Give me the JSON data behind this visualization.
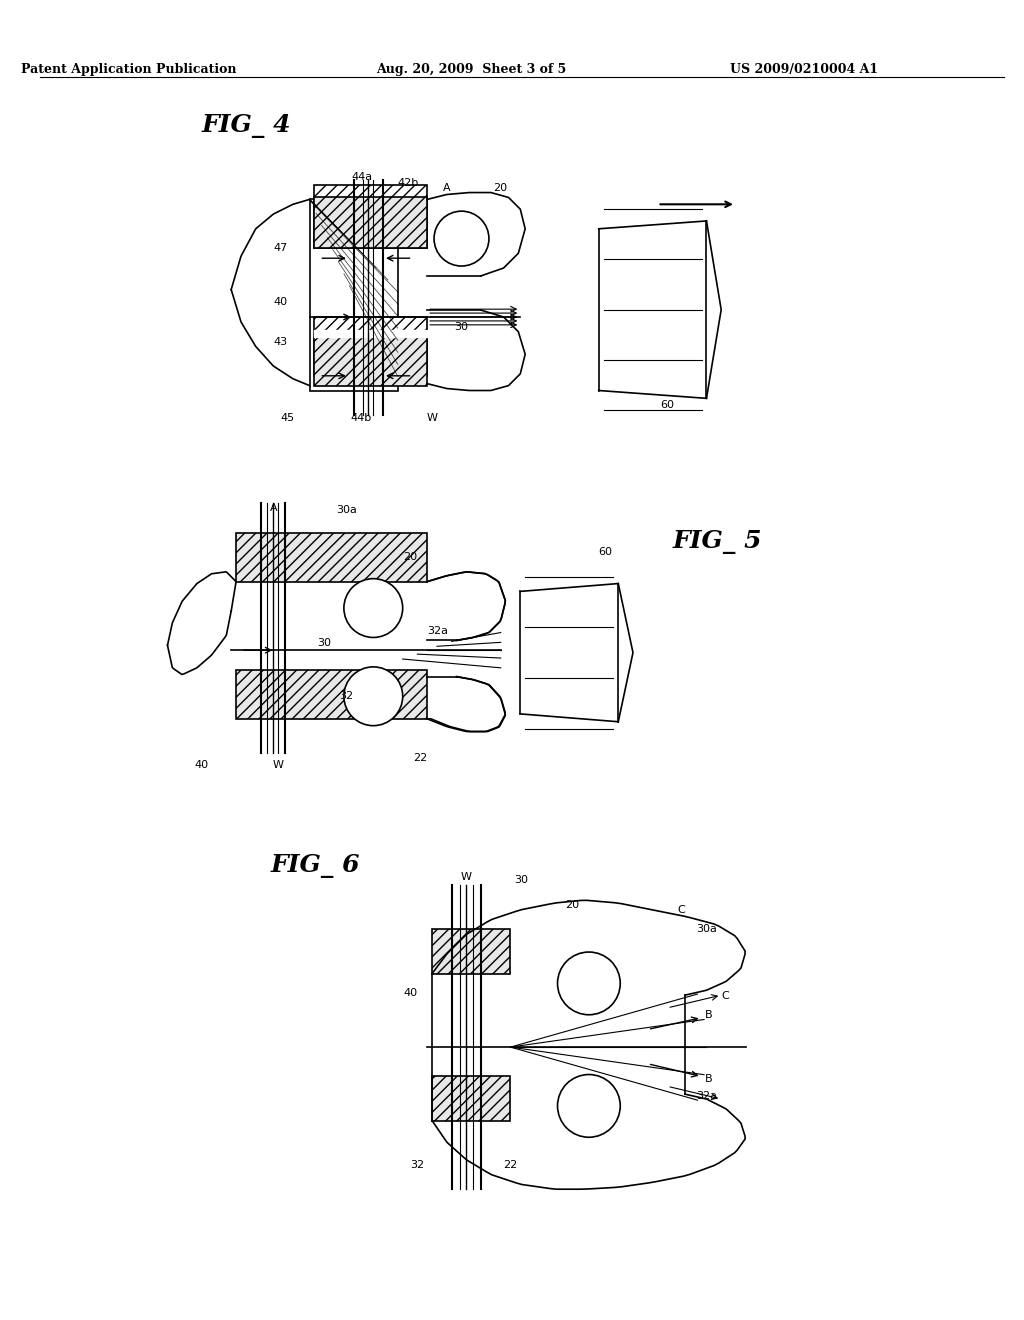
{
  "bg_color": "#ffffff",
  "text_color": "#000000",
  "header_left": "Patent Application Publication",
  "header_center": "Aug. 20, 2009  Sheet 3 of 5",
  "header_right": "US 2009/0210004 A1",
  "fig4_title": "FIG_ 4",
  "fig5_title": "FIG_ 5",
  "fig6_title": "FIG_ 6",
  "line_color": "#000000",
  "hatch_color": "#000000"
}
